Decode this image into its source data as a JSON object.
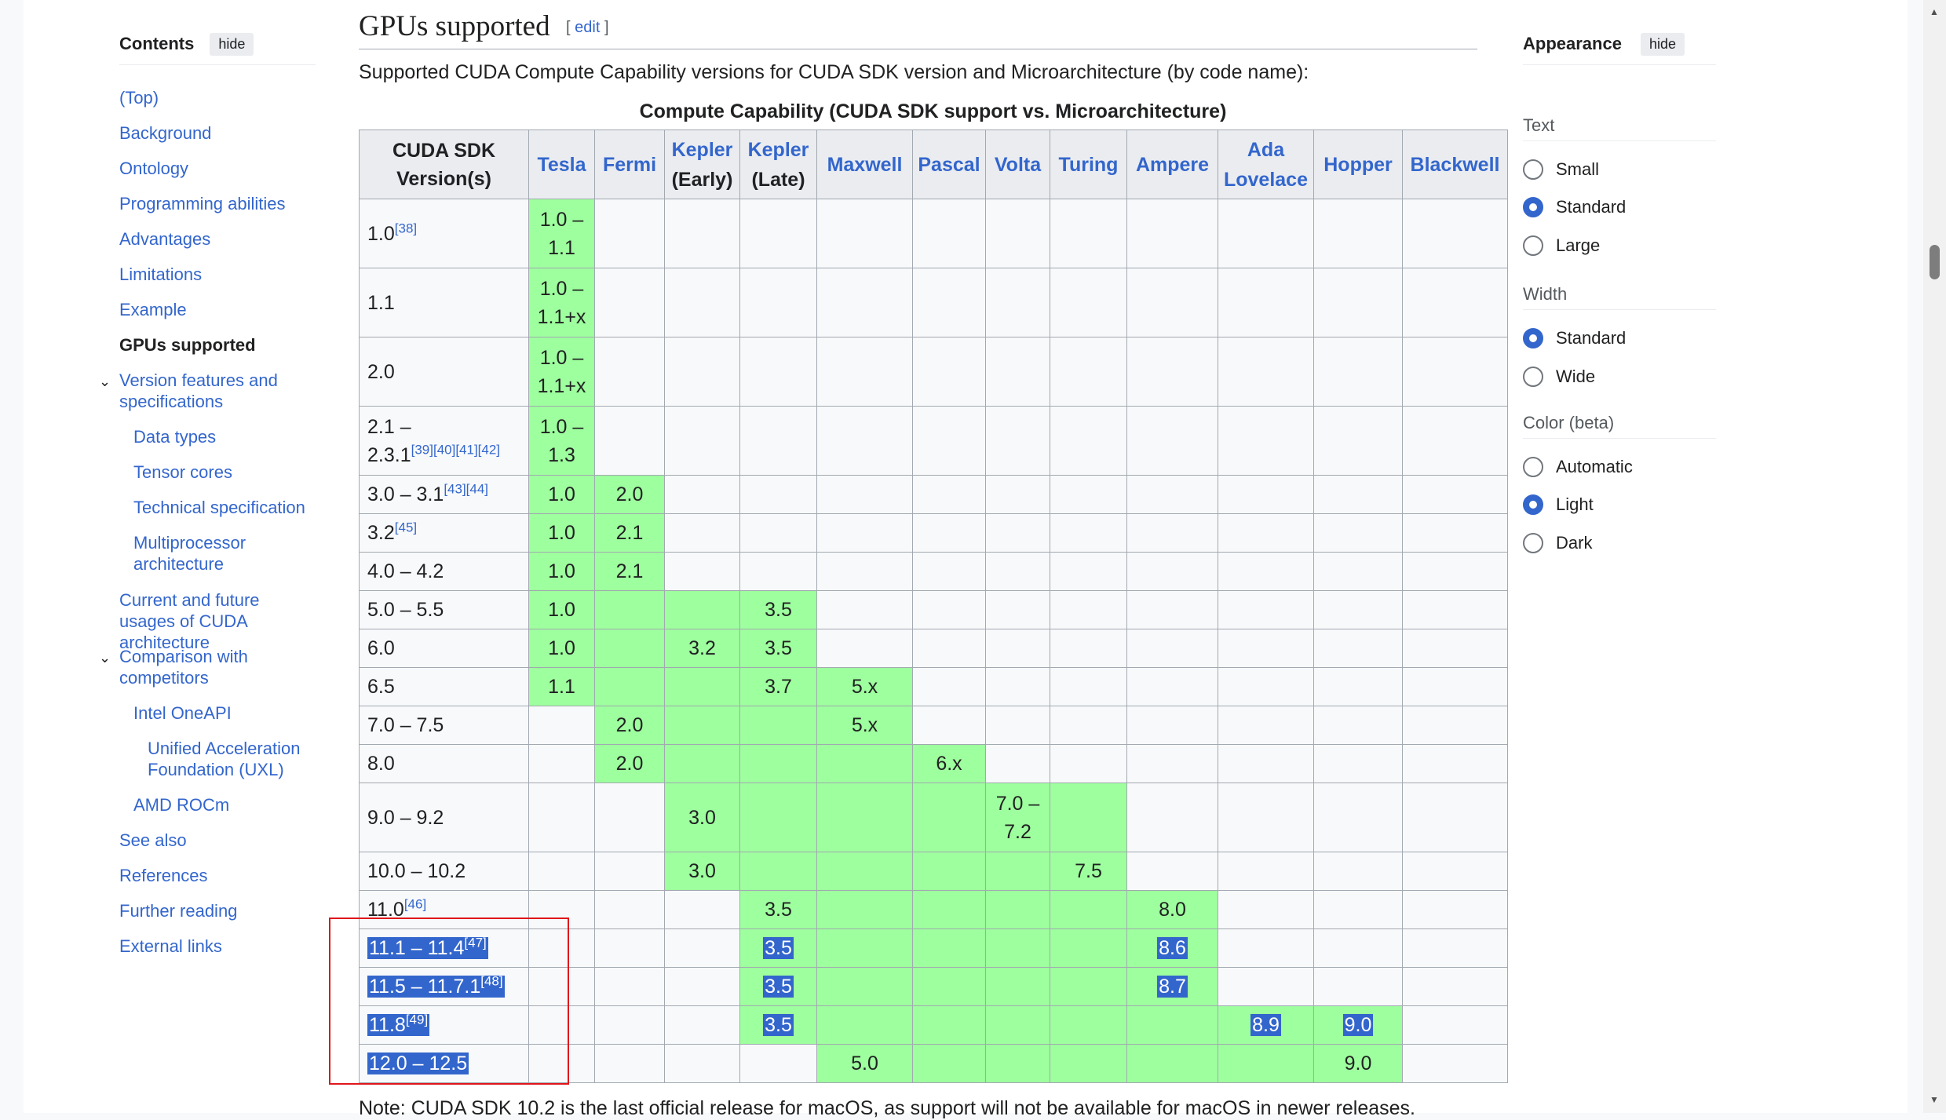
{
  "toc": {
    "title": "Contents",
    "hide_label": "hide",
    "items": [
      {
        "label": "(Top)"
      },
      {
        "label": "Background"
      },
      {
        "label": "Ontology"
      },
      {
        "label": "Programming abilities"
      },
      {
        "label": "Advantages"
      },
      {
        "label": "Limitations"
      },
      {
        "label": "Example"
      },
      {
        "label": "GPUs supported"
      },
      {
        "label": "Version features and specifications"
      },
      {
        "label": "Data types"
      },
      {
        "label": "Tensor cores"
      },
      {
        "label": "Technical specification"
      },
      {
        "label": "Multiprocessor architecture"
      },
      {
        "label": "Current and future usages of CUDA architecture"
      },
      {
        "label": "Comparison with competitors"
      },
      {
        "label": "Intel OneAPI"
      },
      {
        "label": "Unified Acceleration Foundation (UXL)"
      },
      {
        "label": "AMD ROCm"
      },
      {
        "label": "See also"
      },
      {
        "label": "References"
      },
      {
        "label": "Further reading"
      },
      {
        "label": "External links"
      }
    ]
  },
  "section": {
    "title": "GPUs supported",
    "edit_label": "edit",
    "intro": "Supported CUDA Compute Capability versions for CUDA SDK version and Microarchitecture (by code name):",
    "caption": "Compute Capability (CUDA SDK support vs. Microarchitecture)",
    "note": "Note: CUDA SDK 10.2 is the last official release for macOS, as support will not be available for macOS in newer releases."
  },
  "table": {
    "header": {
      "version": [
        "CUDA SDK",
        "Version(s)"
      ],
      "tesla": "Tesla",
      "fermi": "Fermi",
      "kepler_early": [
        "Kepler",
        "(Early)"
      ],
      "kepler_late": [
        "Kepler",
        "(Late)"
      ],
      "maxwell": "Maxwell",
      "pascal": "Pascal",
      "volta": "Volta",
      "turing": "Turing",
      "ampere": "Ampere",
      "ada": [
        "Ada",
        "Lovelace"
      ],
      "hopper": "Hopper",
      "blackwell": "Blackwell"
    },
    "rows": [
      {
        "version": [
          "1.0"
        ],
        "ref": "[38]",
        "tesla": [
          "1.0 –",
          "1.1"
        ]
      },
      {
        "version": [
          "1.1"
        ],
        "ref": "",
        "tesla": [
          "1.0 –",
          "1.1+x"
        ]
      },
      {
        "version": [
          "2.0"
        ],
        "ref": "",
        "tesla": [
          "1.0 –",
          "1.1+x"
        ]
      },
      {
        "version": [
          "2.1 –",
          "2.3.1"
        ],
        "ref": "[39][40][41][42]",
        "tesla": [
          "1.0 –",
          "1.3"
        ]
      },
      {
        "version": [
          "3.0 – 3.1"
        ],
        "ref": "[43][44]",
        "tesla": "1.0",
        "fermi": "2.0"
      },
      {
        "version": [
          "3.2"
        ],
        "ref": "[45]",
        "tesla": "1.0",
        "fermi": "2.1"
      },
      {
        "version": [
          "4.0 – 4.2"
        ],
        "ref": "",
        "tesla": "1.0",
        "fermi": "2.1"
      },
      {
        "version": [
          "5.0 – 5.5"
        ],
        "ref": "",
        "tesla": "1.0",
        "kepler_late": "3.5"
      },
      {
        "version": [
          "6.0"
        ],
        "ref": "",
        "tesla": "1.0",
        "kepler_early": "3.2",
        "kepler_late": "3.5"
      },
      {
        "version": [
          "6.5"
        ],
        "ref": "",
        "tesla": "1.1",
        "kepler_late": "3.7",
        "maxwell": "5.x"
      },
      {
        "version": [
          "7.0 – 7.5"
        ],
        "ref": "",
        "fermi": "2.0",
        "maxwell": "5.x"
      },
      {
        "version": [
          "8.0"
        ],
        "ref": "",
        "fermi": "2.0",
        "pascal": "6.x"
      },
      {
        "version": [
          "9.0 – 9.2"
        ],
        "ref": "",
        "kepler_early": "3.0",
        "volta": [
          "7.0 –",
          "7.2"
        ]
      },
      {
        "version": [
          "10.0 – 10.2"
        ],
        "ref": "",
        "kepler_early": "3.0",
        "turing": "7.5"
      },
      {
        "version": [
          "11.0"
        ],
        "ref": "[46]",
        "kepler_late": "3.5",
        "ampere": "8.0"
      },
      {
        "version": [
          "11.1 – 11.4"
        ],
        "ref": "[47]",
        "kepler_late": "3.5",
        "ampere": "8.6"
      },
      {
        "version": [
          "11.5 – 11.7.1"
        ],
        "ref": "[48]",
        "kepler_late": "3.5",
        "ampere": "8.7"
      },
      {
        "version": [
          "11.8"
        ],
        "ref": "[49]",
        "kepler_late": "3.5",
        "ada": "8.9",
        "hopper": "9.0"
      },
      {
        "version": [
          "12.0 – 12.5"
        ],
        "ref": "",
        "maxwell": "5.0",
        "hopper": "9.0"
      }
    ]
  },
  "appearance": {
    "title": "Appearance",
    "hide_label": "hide",
    "groups": [
      {
        "label": "Text",
        "options": [
          {
            "label": "Small",
            "selected": false
          },
          {
            "label": "Standard",
            "selected": true
          },
          {
            "label": "Large",
            "selected": false
          }
        ]
      },
      {
        "label": "Width",
        "options": [
          {
            "label": "Standard",
            "selected": true
          },
          {
            "label": "Wide",
            "selected": false
          }
        ]
      },
      {
        "label": "Color (beta)",
        "options": [
          {
            "label": "Automatic",
            "selected": false
          },
          {
            "label": "Light",
            "selected": true
          },
          {
            "label": "Dark",
            "selected": false
          }
        ]
      }
    ]
  },
  "colors": {
    "link": "#3366cc",
    "supported_cell": "#9eff9e",
    "highlight_box": "#e0161b",
    "selection": "#3366cc"
  }
}
